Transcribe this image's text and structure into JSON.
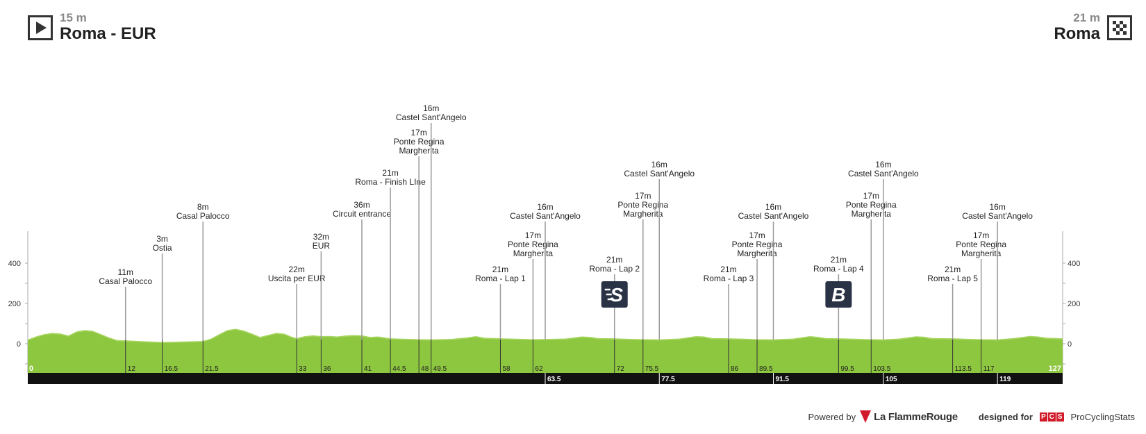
{
  "start": {
    "alt": "15 m",
    "name": "Roma - EUR",
    "icon": "play-icon"
  },
  "finish": {
    "alt": "21 m",
    "name": "Roma",
    "icon": "checkered-flag-icon"
  },
  "footer": {
    "powered": "Powered by",
    "brand": "La FlammeRouge",
    "designed": "designed for",
    "pcs_letters": [
      "P",
      "C",
      "S"
    ],
    "pcs_name": "ProCyclingStats"
  },
  "colors": {
    "profile": "#8dc63f",
    "profile_light": "#a8d663",
    "bar": "#111111",
    "pole": "#999999",
    "badge": "#2a3245"
  },
  "chart_data": {
    "type": "area",
    "xlim": [
      0,
      127
    ],
    "ylim": [
      -150,
      560
    ],
    "y_ticks": [
      0,
      200,
      400
    ],
    "y_tick_labels": [
      "0",
      "200",
      "400"
    ],
    "x_start_label": "0",
    "x_end_label": "127",
    "x_tick_labels_top": [
      "12",
      "16.5",
      "21.5",
      "33",
      "36",
      "41",
      "44.5",
      "48",
      "49.5",
      "58",
      "62",
      "72",
      "75.5",
      "86",
      "89.5",
      "99.5",
      "103.5",
      "113.5",
      "117"
    ],
    "x_tick_values_top": [
      12,
      16.5,
      21.5,
      33,
      36,
      41,
      44.5,
      48,
      49.5,
      58,
      62,
      72,
      75.5,
      86,
      89.5,
      99.5,
      103.5,
      113.5,
      117
    ],
    "x_tick_labels_bar": [
      "63.5",
      "77.5",
      "91.5",
      "105",
      "119"
    ],
    "x_tick_values_bar": [
      63.5,
      77.5,
      91.5,
      105,
      119
    ],
    "elevation": [
      [
        0,
        15
      ],
      [
        1,
        30
      ],
      [
        2,
        42
      ],
      [
        3,
        48
      ],
      [
        4,
        45
      ],
      [
        5,
        35
      ],
      [
        6,
        55
      ],
      [
        7,
        62
      ],
      [
        8,
        58
      ],
      [
        9,
        42
      ],
      [
        10,
        25
      ],
      [
        11,
        12
      ],
      [
        12,
        11
      ],
      [
        14,
        7
      ],
      [
        16.5,
        3
      ],
      [
        19,
        5
      ],
      [
        21.5,
        8
      ],
      [
        22.5,
        20
      ],
      [
        23.5,
        42
      ],
      [
        24.5,
        62
      ],
      [
        25.5,
        68
      ],
      [
        26.5,
        60
      ],
      [
        27.5,
        45
      ],
      [
        28.5,
        28
      ],
      [
        29.5,
        38
      ],
      [
        30.5,
        48
      ],
      [
        31.5,
        44
      ],
      [
        32.3,
        30
      ],
      [
        33,
        22
      ],
      [
        34,
        32
      ],
      [
        35,
        36
      ],
      [
        36,
        32
      ],
      [
        37,
        33
      ],
      [
        38,
        30
      ],
      [
        39,
        35
      ],
      [
        40,
        37
      ],
      [
        41,
        36
      ],
      [
        42,
        28
      ],
      [
        43,
        30
      ],
      [
        44.5,
        21
      ],
      [
        46,
        19
      ],
      [
        48,
        17
      ],
      [
        49.5,
        16
      ],
      [
        52,
        18
      ],
      [
        54,
        26
      ],
      [
        55,
        32
      ],
      [
        56,
        24
      ],
      [
        58,
        21
      ],
      [
        60,
        19
      ],
      [
        62,
        17
      ],
      [
        64,
        18
      ],
      [
        66,
        20
      ],
      [
        68,
        30
      ],
      [
        69,
        28
      ],
      [
        70,
        22
      ],
      [
        72,
        21
      ],
      [
        74,
        18
      ],
      [
        75.5,
        17
      ],
      [
        77.5,
        16
      ],
      [
        80,
        20
      ],
      [
        82,
        32
      ],
      [
        83,
        30
      ],
      [
        84,
        22
      ],
      [
        86,
        21
      ],
      [
        88,
        19
      ],
      [
        89.5,
        17
      ],
      [
        91.5,
        16
      ],
      [
        94,
        20
      ],
      [
        96,
        32
      ],
      [
        97,
        28
      ],
      [
        98,
        22
      ],
      [
        99.5,
        21
      ],
      [
        101.5,
        19
      ],
      [
        103.5,
        17
      ],
      [
        105,
        16
      ],
      [
        107,
        20
      ],
      [
        109,
        31
      ],
      [
        110,
        29
      ],
      [
        111,
        22
      ],
      [
        113.5,
        21
      ],
      [
        115,
        19
      ],
      [
        117,
        17
      ],
      [
        119,
        16
      ],
      [
        121,
        22
      ],
      [
        123,
        33
      ],
      [
        124,
        30
      ],
      [
        125,
        24
      ],
      [
        127,
        21
      ]
    ],
    "points": [
      {
        "km": 12,
        "alt_label": "11m",
        "name": [
          "Casal Palocco"
        ],
        "h": 82
      },
      {
        "km": 16.5,
        "alt_label": "3m",
        "name": [
          "Ostia"
        ],
        "h": 130
      },
      {
        "km": 21.5,
        "alt_label": "8m",
        "name": [
          "Casal Palocco"
        ],
        "h": 176
      },
      {
        "km": 33,
        "alt_label": "22m",
        "name": [
          "Uscita per EUR"
        ],
        "h": 86
      },
      {
        "km": 36,
        "alt_label": "32m",
        "name": [
          "EUR"
        ],
        "h": 133
      },
      {
        "km": 41,
        "alt_label": "36m",
        "name": [
          "Circuit entrance"
        ],
        "h": 179
      },
      {
        "km": 44.5,
        "alt_label": "21m",
        "name": [
          "Roma - Finish LIne"
        ],
        "h": 225
      },
      {
        "km": 48,
        "alt_label": "17m",
        "name": [
          "Ponte Regina",
          "Margherita"
        ],
        "h": 270
      },
      {
        "km": 49.5,
        "alt_label": "16m",
        "name": [
          "Castel Sant'Angelo"
        ],
        "h": 318
      },
      {
        "km": 58,
        "alt_label": "21m",
        "name": [
          "Roma - Lap 1"
        ],
        "h": 86
      },
      {
        "km": 62,
        "alt_label": "17m",
        "name": [
          "Ponte Regina",
          "Margherita"
        ],
        "h": 122
      },
      {
        "km": 63.5,
        "alt_label": "16m",
        "name": [
          "Castel Sant'Angelo"
        ],
        "h": 176
      },
      {
        "km": 72,
        "alt_label": "21m",
        "name": [
          "Roma - Lap 2"
        ],
        "h": 100,
        "badge": "S"
      },
      {
        "km": 75.5,
        "alt_label": "17m",
        "name": [
          "Ponte Regina",
          "Margherita"
        ],
        "h": 179
      },
      {
        "km": 77.5,
        "alt_label": "16m",
        "name": [
          "Castel Sant'Angelo"
        ],
        "h": 237
      },
      {
        "km": 86,
        "alt_label": "21m",
        "name": [
          "Roma - Lap 3"
        ],
        "h": 86
      },
      {
        "km": 89.5,
        "alt_label": "17m",
        "name": [
          "Ponte Regina",
          "Margherita"
        ],
        "h": 122
      },
      {
        "km": 91.5,
        "alt_label": "16m",
        "name": [
          "Castel Sant'Angelo"
        ],
        "h": 176
      },
      {
        "km": 99.5,
        "alt_label": "21m",
        "name": [
          "Roma - Lap 4"
        ],
        "h": 100,
        "badge": "B"
      },
      {
        "km": 103.5,
        "alt_label": "17m",
        "name": [
          "Ponte Regina",
          "Margherita"
        ],
        "h": 179
      },
      {
        "km": 105,
        "alt_label": "16m",
        "name": [
          "Castel Sant'Angelo"
        ],
        "h": 237
      },
      {
        "km": 113.5,
        "alt_label": "21m",
        "name": [
          "Roma - Lap 5"
        ],
        "h": 86
      },
      {
        "km": 117,
        "alt_label": "17m",
        "name": [
          "Ponte Regina",
          "Margherita"
        ],
        "h": 122
      },
      {
        "km": 119,
        "alt_label": "16m",
        "name": [
          "Castel Sant'Angelo"
        ],
        "h": 176
      }
    ]
  }
}
